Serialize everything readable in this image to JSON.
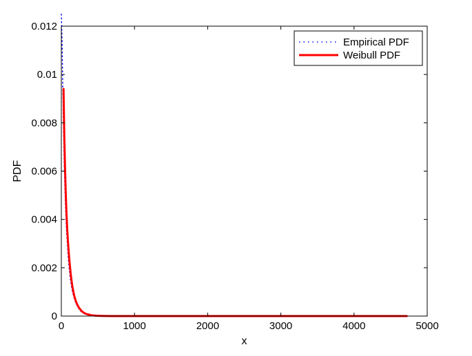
{
  "chart_data": {
    "type": "line",
    "xlabel": "x",
    "ylabel": "PDF",
    "xlim": [
      0,
      5000
    ],
    "ylim": [
      0,
      0.012
    ],
    "xticks": [
      "0",
      "1000",
      "2000",
      "3000",
      "4000",
      "5000"
    ],
    "yticks": [
      "0",
      "0.002",
      "0.004",
      "0.006",
      "0.008",
      "0.01",
      "0.012"
    ],
    "grid": false,
    "legend_position": "top-right",
    "series": [
      {
        "name": "Empirical PDF",
        "color": "#0000ff",
        "style": "dotted",
        "x": [
          0,
          10,
          20,
          30,
          40,
          50,
          60,
          70,
          80,
          90,
          100,
          110,
          120,
          130,
          140,
          150,
          165,
          180,
          200,
          220,
          240,
          260,
          280,
          300,
          330,
          360,
          400,
          450,
          500,
          550,
          600,
          700,
          800,
          1000,
          1500,
          2000,
          3000,
          4000,
          4720
        ],
        "y": [
          0.0125,
          0.0114,
          0.0095,
          0.0078,
          0.0063,
          0.0052,
          0.0043,
          0.0036,
          0.0031,
          0.0026,
          0.0022,
          0.0019,
          0.0016,
          0.0014,
          0.0012,
          0.00105,
          0.00085,
          0.0007,
          0.00052,
          0.0004,
          0.0003,
          0.00022,
          0.00016,
          0.00012,
          8e-05,
          5e-05,
          3e-05,
          1.5e-05,
          8e-06,
          4e-06,
          2e-06,
          1e-06,
          0,
          0,
          0,
          0,
          0,
          0,
          0
        ]
      },
      {
        "name": "Weibull PDF",
        "color": "#ff0000",
        "style": "solid",
        "x": [
          30,
          35,
          40,
          50,
          60,
          70,
          80,
          90,
          100,
          110,
          120,
          130,
          140,
          150,
          165,
          180,
          200,
          220,
          240,
          260,
          280,
          300,
          330,
          360,
          400,
          450,
          500,
          550,
          600,
          700,
          800,
          1000,
          1500,
          2000,
          3000,
          4000,
          4720
        ],
        "y": [
          0.0094,
          0.0085,
          0.0076,
          0.0062,
          0.0051,
          0.0043,
          0.0036,
          0.0031,
          0.0027,
          0.0023,
          0.002,
          0.0017,
          0.00145,
          0.00125,
          0.001,
          0.0008,
          0.0006,
          0.00046,
          0.00035,
          0.00027,
          0.0002,
          0.00015,
          0.0001,
          7e-05,
          4e-05,
          2e-05,
          1e-05,
          5e-06,
          3e-06,
          1e-06,
          0,
          0,
          0,
          0,
          0,
          0,
          0
        ]
      }
    ]
  }
}
